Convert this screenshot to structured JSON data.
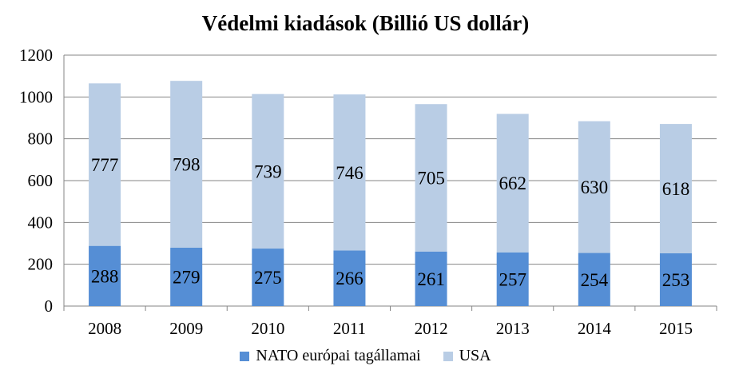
{
  "chart_data": {
    "type": "bar",
    "stacked": true,
    "title": "Védelmi kiadások (Billió US dollár)",
    "xlabel": "",
    "ylabel": "",
    "categories": [
      "2008",
      "2009",
      "2010",
      "2011",
      "2012",
      "2013",
      "2014",
      "2015"
    ],
    "series": [
      {
        "name": "NATO európai tagállamai",
        "color": "#558ed5",
        "values": [
          288,
          279,
          275,
          266,
          261,
          257,
          254,
          253
        ]
      },
      {
        "name": "USA",
        "color": "#b9cde5",
        "values": [
          777,
          798,
          739,
          746,
          705,
          662,
          630,
          618
        ]
      }
    ],
    "ylim": [
      0,
      1200
    ],
    "yticks": [
      "0",
      "200",
      "400",
      "600",
      "800",
      "1000",
      "1200"
    ],
    "grid": true,
    "legend": "bottom"
  }
}
